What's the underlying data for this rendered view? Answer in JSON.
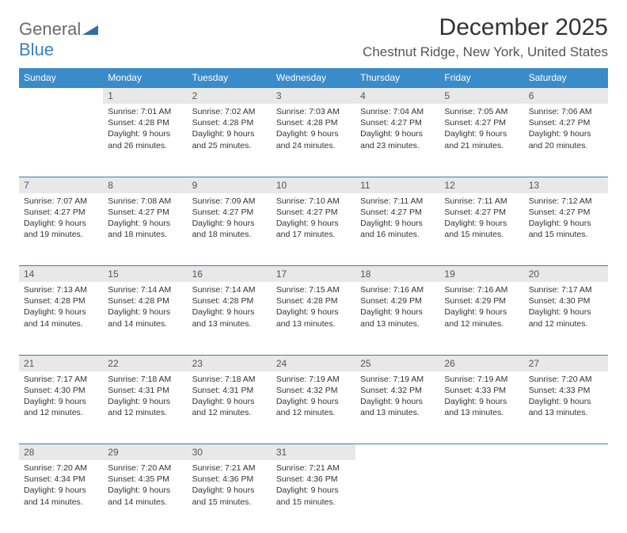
{
  "logo": {
    "text1": "General",
    "text2": "Blue",
    "mark_color": "#2f6fa8"
  },
  "title": "December 2025",
  "location": "Chestnut Ridge, New York, United States",
  "header_bg": "#3a8bc9",
  "daynum_bg": "#e8e8e8",
  "rule_color": "#3a7fb0",
  "weekdays": [
    "Sunday",
    "Monday",
    "Tuesday",
    "Wednesday",
    "Thursday",
    "Friday",
    "Saturday"
  ],
  "weeks": [
    {
      "days": [
        {
          "num": "",
          "sunrise": "",
          "sunset": "",
          "daylight": ""
        },
        {
          "num": "1",
          "sunrise": "Sunrise: 7:01 AM",
          "sunset": "Sunset: 4:28 PM",
          "daylight": "Daylight: 9 hours and 26 minutes."
        },
        {
          "num": "2",
          "sunrise": "Sunrise: 7:02 AM",
          "sunset": "Sunset: 4:28 PM",
          "daylight": "Daylight: 9 hours and 25 minutes."
        },
        {
          "num": "3",
          "sunrise": "Sunrise: 7:03 AM",
          "sunset": "Sunset: 4:28 PM",
          "daylight": "Daylight: 9 hours and 24 minutes."
        },
        {
          "num": "4",
          "sunrise": "Sunrise: 7:04 AM",
          "sunset": "Sunset: 4:27 PM",
          "daylight": "Daylight: 9 hours and 23 minutes."
        },
        {
          "num": "5",
          "sunrise": "Sunrise: 7:05 AM",
          "sunset": "Sunset: 4:27 PM",
          "daylight": "Daylight: 9 hours and 21 minutes."
        },
        {
          "num": "6",
          "sunrise": "Sunrise: 7:06 AM",
          "sunset": "Sunset: 4:27 PM",
          "daylight": "Daylight: 9 hours and 20 minutes."
        }
      ]
    },
    {
      "days": [
        {
          "num": "7",
          "sunrise": "Sunrise: 7:07 AM",
          "sunset": "Sunset: 4:27 PM",
          "daylight": "Daylight: 9 hours and 19 minutes."
        },
        {
          "num": "8",
          "sunrise": "Sunrise: 7:08 AM",
          "sunset": "Sunset: 4:27 PM",
          "daylight": "Daylight: 9 hours and 18 minutes."
        },
        {
          "num": "9",
          "sunrise": "Sunrise: 7:09 AM",
          "sunset": "Sunset: 4:27 PM",
          "daylight": "Daylight: 9 hours and 18 minutes."
        },
        {
          "num": "10",
          "sunrise": "Sunrise: 7:10 AM",
          "sunset": "Sunset: 4:27 PM",
          "daylight": "Daylight: 9 hours and 17 minutes."
        },
        {
          "num": "11",
          "sunrise": "Sunrise: 7:11 AM",
          "sunset": "Sunset: 4:27 PM",
          "daylight": "Daylight: 9 hours and 16 minutes."
        },
        {
          "num": "12",
          "sunrise": "Sunrise: 7:11 AM",
          "sunset": "Sunset: 4:27 PM",
          "daylight": "Daylight: 9 hours and 15 minutes."
        },
        {
          "num": "13",
          "sunrise": "Sunrise: 7:12 AM",
          "sunset": "Sunset: 4:27 PM",
          "daylight": "Daylight: 9 hours and 15 minutes."
        }
      ]
    },
    {
      "days": [
        {
          "num": "14",
          "sunrise": "Sunrise: 7:13 AM",
          "sunset": "Sunset: 4:28 PM",
          "daylight": "Daylight: 9 hours and 14 minutes."
        },
        {
          "num": "15",
          "sunrise": "Sunrise: 7:14 AM",
          "sunset": "Sunset: 4:28 PM",
          "daylight": "Daylight: 9 hours and 14 minutes."
        },
        {
          "num": "16",
          "sunrise": "Sunrise: 7:14 AM",
          "sunset": "Sunset: 4:28 PM",
          "daylight": "Daylight: 9 hours and 13 minutes."
        },
        {
          "num": "17",
          "sunrise": "Sunrise: 7:15 AM",
          "sunset": "Sunset: 4:28 PM",
          "daylight": "Daylight: 9 hours and 13 minutes."
        },
        {
          "num": "18",
          "sunrise": "Sunrise: 7:16 AM",
          "sunset": "Sunset: 4:29 PM",
          "daylight": "Daylight: 9 hours and 13 minutes."
        },
        {
          "num": "19",
          "sunrise": "Sunrise: 7:16 AM",
          "sunset": "Sunset: 4:29 PM",
          "daylight": "Daylight: 9 hours and 12 minutes."
        },
        {
          "num": "20",
          "sunrise": "Sunrise: 7:17 AM",
          "sunset": "Sunset: 4:30 PM",
          "daylight": "Daylight: 9 hours and 12 minutes."
        }
      ]
    },
    {
      "days": [
        {
          "num": "21",
          "sunrise": "Sunrise: 7:17 AM",
          "sunset": "Sunset: 4:30 PM",
          "daylight": "Daylight: 9 hours and 12 minutes."
        },
        {
          "num": "22",
          "sunrise": "Sunrise: 7:18 AM",
          "sunset": "Sunset: 4:31 PM",
          "daylight": "Daylight: 9 hours and 12 minutes."
        },
        {
          "num": "23",
          "sunrise": "Sunrise: 7:18 AM",
          "sunset": "Sunset: 4:31 PM",
          "daylight": "Daylight: 9 hours and 12 minutes."
        },
        {
          "num": "24",
          "sunrise": "Sunrise: 7:19 AM",
          "sunset": "Sunset: 4:32 PM",
          "daylight": "Daylight: 9 hours and 12 minutes."
        },
        {
          "num": "25",
          "sunrise": "Sunrise: 7:19 AM",
          "sunset": "Sunset: 4:32 PM",
          "daylight": "Daylight: 9 hours and 13 minutes."
        },
        {
          "num": "26",
          "sunrise": "Sunrise: 7:19 AM",
          "sunset": "Sunset: 4:33 PM",
          "daylight": "Daylight: 9 hours and 13 minutes."
        },
        {
          "num": "27",
          "sunrise": "Sunrise: 7:20 AM",
          "sunset": "Sunset: 4:33 PM",
          "daylight": "Daylight: 9 hours and 13 minutes."
        }
      ]
    },
    {
      "days": [
        {
          "num": "28",
          "sunrise": "Sunrise: 7:20 AM",
          "sunset": "Sunset: 4:34 PM",
          "daylight": "Daylight: 9 hours and 14 minutes."
        },
        {
          "num": "29",
          "sunrise": "Sunrise: 7:20 AM",
          "sunset": "Sunset: 4:35 PM",
          "daylight": "Daylight: 9 hours and 14 minutes."
        },
        {
          "num": "30",
          "sunrise": "Sunrise: 7:21 AM",
          "sunset": "Sunset: 4:36 PM",
          "daylight": "Daylight: 9 hours and 15 minutes."
        },
        {
          "num": "31",
          "sunrise": "Sunrise: 7:21 AM",
          "sunset": "Sunset: 4:36 PM",
          "daylight": "Daylight: 9 hours and 15 minutes."
        },
        {
          "num": "",
          "sunrise": "",
          "sunset": "",
          "daylight": ""
        },
        {
          "num": "",
          "sunrise": "",
          "sunset": "",
          "daylight": ""
        },
        {
          "num": "",
          "sunrise": "",
          "sunset": "",
          "daylight": ""
        }
      ]
    }
  ]
}
